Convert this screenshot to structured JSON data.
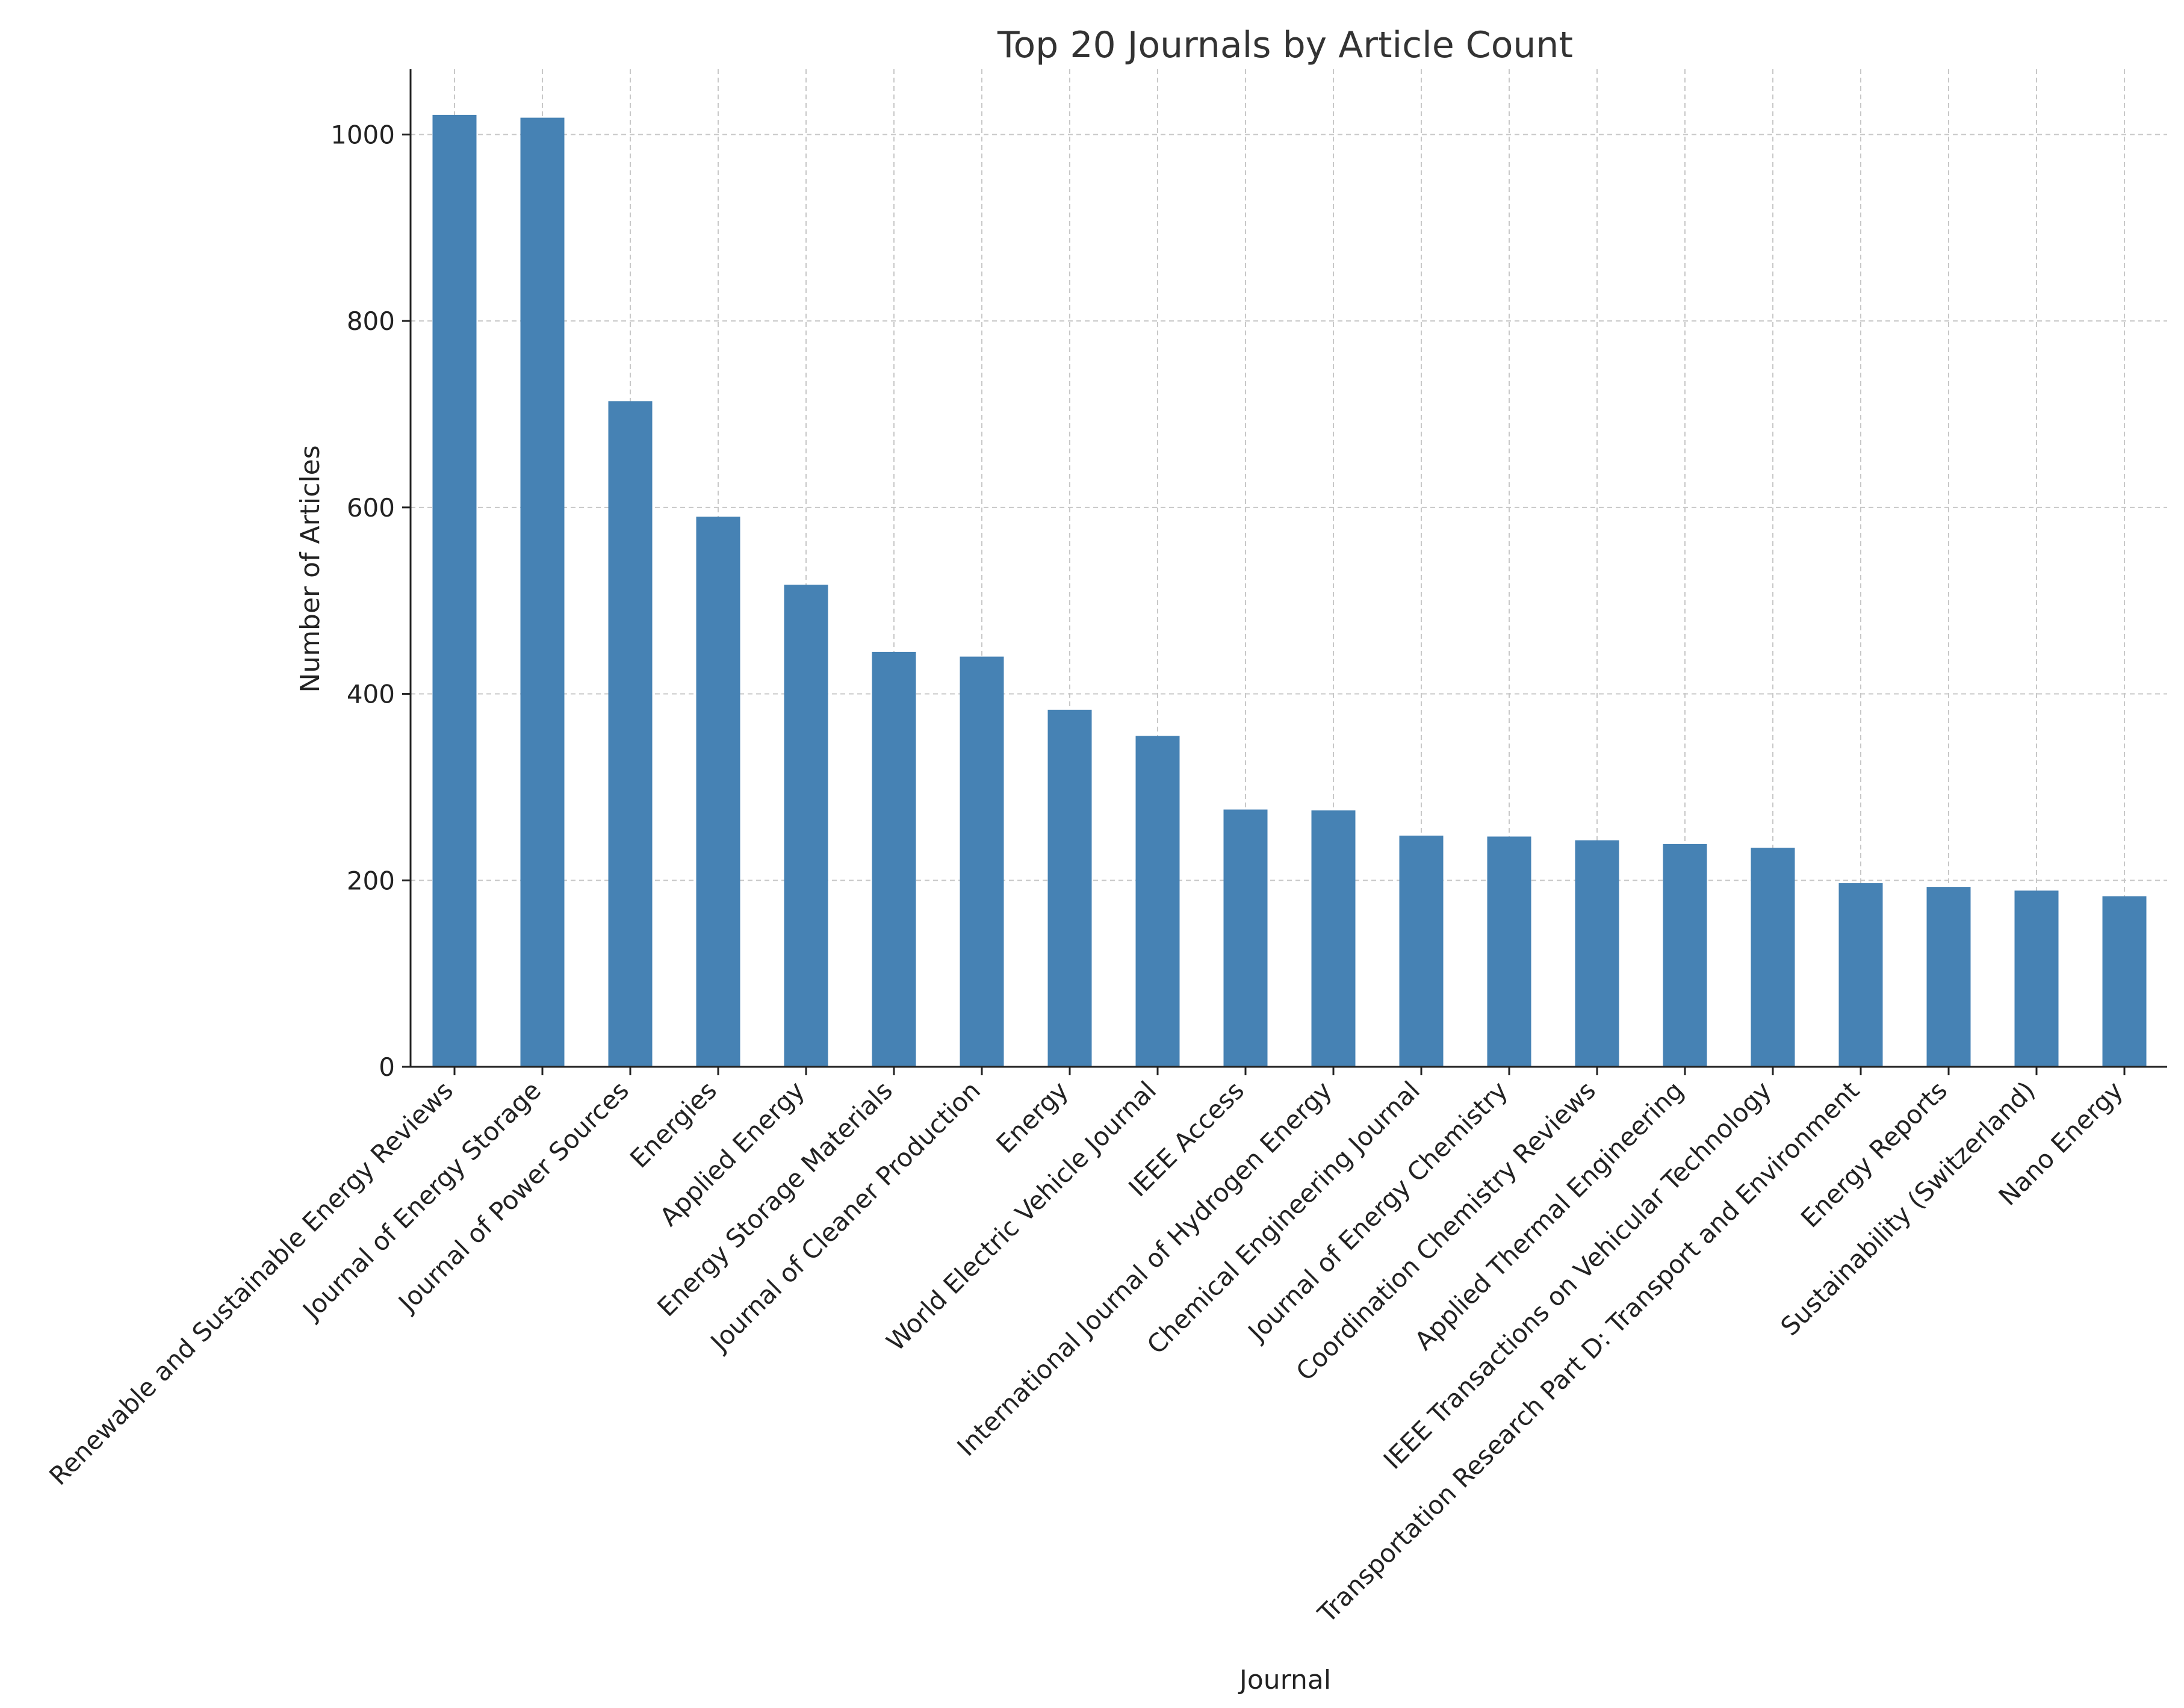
{
  "chart_data": {
    "type": "bar",
    "title": "Top 20 Journals by Article Count",
    "xlabel": "Journal",
    "ylabel": "Number of Articles",
    "ylim": [
      0,
      1070
    ],
    "yticks": [
      0,
      200,
      400,
      600,
      800,
      1000
    ],
    "grid": true,
    "bar_color": "#4682b4",
    "categories": [
      "Renewable and Sustainable Energy Reviews",
      "Journal of Energy Storage",
      "Journal of Power Sources",
      "Energies",
      "Applied Energy",
      "Energy Storage Materials",
      "Journal of Cleaner Production",
      "Energy",
      "World Electric Vehicle Journal",
      "IEEE Access",
      "International Journal of Hydrogen Energy",
      "Chemical Engineering Journal",
      "Journal of Energy Chemistry",
      "Coordination Chemistry Reviews",
      "Applied Thermal Engineering",
      "IEEE Transactions on Vehicular Technology",
      "Transportation Research Part D: Transport and Environment",
      "Energy Reports",
      "Sustainability (Switzerland)",
      "Nano Energy"
    ],
    "values": [
      1021,
      1018,
      714,
      590,
      517,
      445,
      440,
      383,
      355,
      276,
      275,
      248,
      247,
      243,
      239,
      235,
      197,
      193,
      189,
      183
    ]
  }
}
